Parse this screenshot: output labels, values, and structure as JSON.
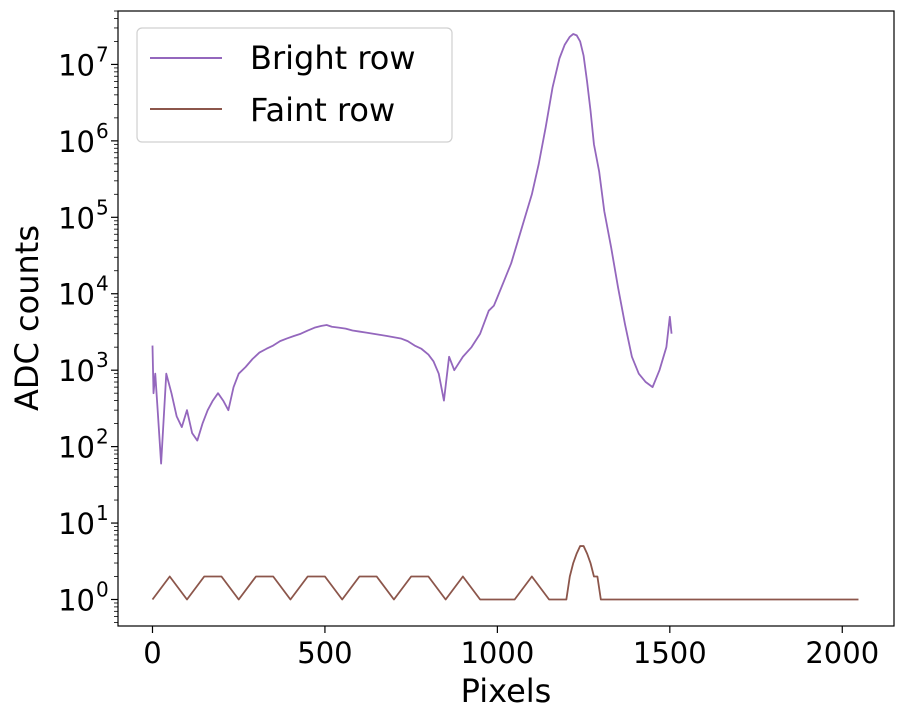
{
  "chart_data": {
    "type": "line",
    "xlabel": "Pixels",
    "ylabel": "ADC counts",
    "xlim": [
      -100,
      2150
    ],
    "yscale": "log",
    "ylim": [
      0.45,
      50000000
    ],
    "xticks": [
      0,
      500,
      1000,
      1500,
      2000
    ],
    "yticks": [
      {
        "value": 1,
        "base": "10",
        "exp": "0"
      },
      {
        "value": 10,
        "base": "10",
        "exp": "1"
      },
      {
        "value": 100,
        "base": "10",
        "exp": "2"
      },
      {
        "value": 1000,
        "base": "10",
        "exp": "3"
      },
      {
        "value": 10000,
        "base": "10",
        "exp": "4"
      },
      {
        "value": 100000,
        "base": "10",
        "exp": "5"
      },
      {
        "value": 1000000,
        "base": "10",
        "exp": "6"
      },
      {
        "value": 10000000,
        "base": "10",
        "exp": "7"
      }
    ],
    "grid": false,
    "legend_position": "top-left",
    "series": [
      {
        "name": "Bright row",
        "color": "#9467bd",
        "x": [
          0,
          3,
          8,
          15,
          25,
          40,
          55,
          70,
          85,
          100,
          115,
          130,
          145,
          160,
          175,
          190,
          205,
          220,
          235,
          250,
          270,
          290,
          310,
          330,
          350,
          370,
          390,
          410,
          430,
          450,
          470,
          490,
          505,
          520,
          540,
          560,
          580,
          600,
          620,
          640,
          660,
          680,
          700,
          720,
          740,
          760,
          780,
          800,
          815,
          830,
          845,
          860,
          875,
          900,
          925,
          950,
          975,
          990,
          1000,
          1020,
          1040,
          1060,
          1080,
          1100,
          1120,
          1140,
          1160,
          1180,
          1195,
          1210,
          1220,
          1230,
          1240,
          1250,
          1260,
          1270,
          1280,
          1295,
          1310,
          1330,
          1350,
          1370,
          1390,
          1410,
          1430,
          1450,
          1470,
          1490,
          1500,
          1505
        ],
        "y": [
          2100,
          500,
          900,
          300,
          60,
          900,
          500,
          250,
          180,
          300,
          150,
          120,
          200,
          300,
          400,
          500,
          400,
          300,
          600,
          900,
          1100,
          1400,
          1700,
          1900,
          2100,
          2400,
          2600,
          2800,
          3000,
          3300,
          3600,
          3800,
          3900,
          3700,
          3600,
          3500,
          3300,
          3200,
          3100,
          3000,
          2900,
          2800,
          2700,
          2600,
          2400,
          2100,
          1900,
          1600,
          1300,
          900,
          400,
          1500,
          1000,
          1500,
          2000,
          3000,
          6000,
          7000,
          9000,
          15000,
          25000,
          50000,
          100000,
          200000,
          500000,
          1500000,
          5000000,
          12000000,
          18000000,
          23000000,
          25000000,
          24000000,
          20000000,
          13000000,
          6000000,
          2500000,
          900000,
          400000,
          120000,
          40000,
          12000,
          4000,
          1500,
          900,
          700,
          600,
          1000,
          2000,
          5000,
          3000
        ]
      },
      {
        "name": "Faint row",
        "color": "#8c564b",
        "x": [
          0,
          50,
          100,
          150,
          200,
          250,
          300,
          350,
          400,
          450,
          500,
          550,
          600,
          650,
          700,
          750,
          800,
          850,
          900,
          950,
          1000,
          1050,
          1100,
          1150,
          1200,
          1210,
          1220,
          1230,
          1240,
          1250,
          1260,
          1270,
          1280,
          1290,
          1300,
          1350,
          1400,
          1450,
          1500,
          1550,
          1600,
          1650,
          1700,
          1750,
          1800,
          1850,
          1900,
          1950,
          2000,
          2047
        ],
        "y": [
          1,
          2,
          1,
          2,
          2,
          1,
          2,
          2,
          1,
          2,
          2,
          1,
          2,
          2,
          1,
          2,
          2,
          1,
          2,
          1,
          1,
          1,
          2,
          1,
          1,
          2,
          3,
          4,
          5,
          5,
          4,
          3,
          2,
          2,
          1,
          1,
          1,
          1,
          1,
          1,
          1,
          1,
          1,
          1,
          1,
          1,
          1,
          1,
          1,
          1
        ]
      }
    ]
  }
}
